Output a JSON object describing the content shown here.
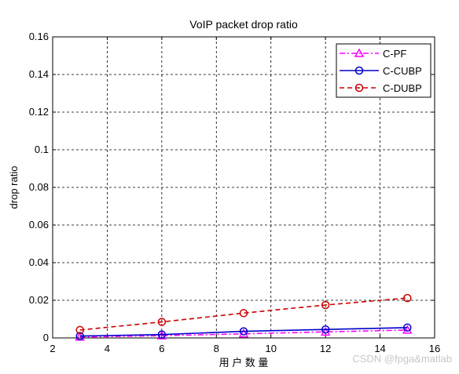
{
  "chart_data": {
    "type": "line",
    "title": "VoIP packet drop ratio",
    "xlabel": "用 户 数 量",
    "ylabel": "drop ratio",
    "xlim": [
      2,
      16
    ],
    "ylim": [
      0,
      0.16
    ],
    "xticks": [
      "2",
      "4",
      "6",
      "8",
      "10",
      "12",
      "14",
      "16"
    ],
    "yticks": [
      "0",
      "0.02",
      "0.04",
      "0.06",
      "0.08",
      "0.1",
      "0.12",
      "0.14",
      "0.16"
    ],
    "grid": true,
    "legend_position": "top-right",
    "x": [
      3,
      6,
      9,
      12,
      15
    ],
    "series": [
      {
        "name": "C-PF",
        "values": [
          0.0005,
          0.0012,
          0.0022,
          0.0032,
          0.0042
        ],
        "color": "#ff00ff",
        "marker": "triangle",
        "line_style": "dash-dot"
      },
      {
        "name": "C-CUBP",
        "values": [
          0.001,
          0.0018,
          0.0035,
          0.0045,
          0.0055
        ],
        "color": "#0000cc",
        "marker": "circle",
        "line_style": "solid"
      },
      {
        "name": "C-DUBP",
        "values": [
          0.0042,
          0.0085,
          0.0132,
          0.0175,
          0.0212
        ],
        "color": "#cc0000",
        "marker": "circle",
        "line_style": "dashed"
      }
    ]
  },
  "watermark": "CSDN @fpga&matlab"
}
